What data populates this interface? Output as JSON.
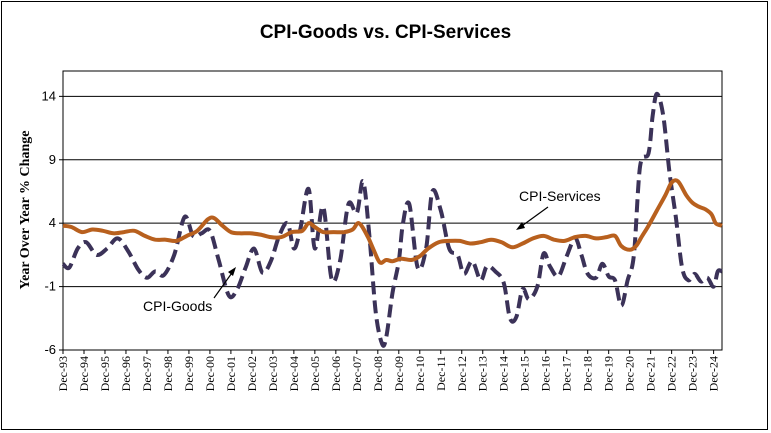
{
  "chart_data": {
    "type": "line",
    "title": "CPI-Goods vs. CPI-Services",
    "xlabel": "",
    "ylabel": "Year Over Year % Change",
    "ylim": [
      -6,
      16
    ],
    "yticks": [
      14,
      9,
      4,
      -1,
      -6
    ],
    "categories": [
      "Dec-93",
      "Dec-94",
      "Dec-95",
      "Dec-96",
      "Dec-97",
      "Dec-98",
      "Dec-99",
      "Dec-00",
      "Dec-01",
      "Dec-02",
      "Dec-03",
      "Dec-04",
      "Dec-05",
      "Dec-06",
      "Dec-07",
      "Dec-08",
      "Dec-09",
      "Dec-10",
      "Dec-11",
      "Dec-12",
      "Dec-13",
      "Dec-14",
      "Dec-15",
      "Dec-16",
      "Dec-17",
      "Dec-18",
      "Dec-19",
      "Dec-20",
      "Dec-21",
      "Dec-22",
      "Dec-23",
      "Dec-24"
    ],
    "x_start": 1993.9,
    "x_end": 2025.3,
    "gridlines": true,
    "series": [
      {
        "name": "CPI-Services",
        "color": "#b8601e",
        "style": "solid",
        "points": [
          [
            1993.9,
            3.8
          ],
          [
            1994.3,
            3.7
          ],
          [
            1994.8,
            3.3
          ],
          [
            1995.3,
            3.5
          ],
          [
            1995.8,
            3.4
          ],
          [
            1996.3,
            3.2
          ],
          [
            1996.8,
            3.3
          ],
          [
            1997.3,
            3.4
          ],
          [
            1997.8,
            3.0
          ],
          [
            1998.3,
            2.7
          ],
          [
            1998.8,
            2.7
          ],
          [
            1999.3,
            2.6
          ],
          [
            1999.8,
            3.0
          ],
          [
            2000.3,
            3.4
          ],
          [
            2000.8,
            4.3
          ],
          [
            2001.1,
            4.4
          ],
          [
            2001.5,
            3.8
          ],
          [
            2001.9,
            3.3
          ],
          [
            2002.3,
            3.2
          ],
          [
            2002.8,
            3.2
          ],
          [
            2003.3,
            3.1
          ],
          [
            2003.8,
            2.9
          ],
          [
            2004.3,
            2.9
          ],
          [
            2004.8,
            3.3
          ],
          [
            2005.3,
            3.4
          ],
          [
            2005.6,
            4.0
          ],
          [
            2005.9,
            3.7
          ],
          [
            2006.3,
            3.3
          ],
          [
            2006.8,
            3.3
          ],
          [
            2007.3,
            3.3
          ],
          [
            2007.7,
            3.5
          ],
          [
            2008.0,
            4.0
          ],
          [
            2008.4,
            3.0
          ],
          [
            2008.7,
            1.9
          ],
          [
            2009.0,
            0.9
          ],
          [
            2009.3,
            1.1
          ],
          [
            2009.6,
            1.0
          ],
          [
            2010.0,
            1.2
          ],
          [
            2010.5,
            1.1
          ],
          [
            2010.9,
            1.4
          ],
          [
            2011.3,
            2.0
          ],
          [
            2011.8,
            2.5
          ],
          [
            2012.3,
            2.6
          ],
          [
            2012.8,
            2.6
          ],
          [
            2013.3,
            2.4
          ],
          [
            2013.8,
            2.5
          ],
          [
            2014.3,
            2.7
          ],
          [
            2014.8,
            2.5
          ],
          [
            2015.3,
            2.1
          ],
          [
            2015.8,
            2.4
          ],
          [
            2016.3,
            2.8
          ],
          [
            2016.8,
            3.0
          ],
          [
            2017.3,
            2.7
          ],
          [
            2017.8,
            2.6
          ],
          [
            2018.3,
            2.9
          ],
          [
            2018.8,
            3.0
          ],
          [
            2019.3,
            2.8
          ],
          [
            2019.8,
            2.9
          ],
          [
            2020.2,
            3.0
          ],
          [
            2020.5,
            2.2
          ],
          [
            2020.9,
            1.9
          ],
          [
            2021.2,
            2.2
          ],
          [
            2021.5,
            3.0
          ],
          [
            2021.8,
            3.8
          ],
          [
            2022.2,
            5.0
          ],
          [
            2022.6,
            6.2
          ],
          [
            2022.9,
            7.2
          ],
          [
            2023.2,
            7.3
          ],
          [
            2023.6,
            6.2
          ],
          [
            2023.9,
            5.6
          ],
          [
            2024.2,
            5.3
          ],
          [
            2024.5,
            5.1
          ],
          [
            2024.8,
            4.7
          ],
          [
            2025.0,
            4.0
          ],
          [
            2025.3,
            3.8
          ]
        ]
      },
      {
        "name": "CPI-Goods",
        "color": "#3b3258",
        "style": "dashed",
        "points": [
          [
            1993.9,
            0.8
          ],
          [
            1994.2,
            0.5
          ],
          [
            1994.6,
            2.0
          ],
          [
            1995.0,
            2.5
          ],
          [
            1995.5,
            1.5
          ],
          [
            1996.0,
            2.0
          ],
          [
            1996.5,
            2.8
          ],
          [
            1997.0,
            1.8
          ],
          [
            1997.5,
            0.3
          ],
          [
            1997.9,
            -0.3
          ],
          [
            1998.3,
            0.2
          ],
          [
            1998.7,
            -0.1
          ],
          [
            1999.2,
            1.5
          ],
          [
            1999.7,
            4.5
          ],
          [
            2000.1,
            3.0
          ],
          [
            2000.5,
            3.2
          ],
          [
            2000.9,
            3.4
          ],
          [
            2001.3,
            1.2
          ],
          [
            2001.8,
            -1.7
          ],
          [
            2002.2,
            -1.2
          ],
          [
            2002.6,
            0.5
          ],
          [
            2003.0,
            2.0
          ],
          [
            2003.4,
            0.1
          ],
          [
            2003.8,
            1.0
          ],
          [
            2004.2,
            3.0
          ],
          [
            2004.6,
            4.0
          ],
          [
            2004.9,
            2.0
          ],
          [
            2005.2,
            3.5
          ],
          [
            2005.6,
            6.7
          ],
          [
            2005.9,
            2.0
          ],
          [
            2006.3,
            5.3
          ],
          [
            2006.7,
            -0.4
          ],
          [
            2007.1,
            1.0
          ],
          [
            2007.5,
            5.5
          ],
          [
            2007.9,
            4.8
          ],
          [
            2008.2,
            7.3
          ],
          [
            2008.5,
            3.0
          ],
          [
            2008.8,
            -3.0
          ],
          [
            2009.1,
            -5.5
          ],
          [
            2009.3,
            -5.0
          ],
          [
            2009.6,
            -1.5
          ],
          [
            2009.9,
            1.0
          ],
          [
            2010.1,
            4.0
          ],
          [
            2010.4,
            5.5
          ],
          [
            2010.8,
            0.5
          ],
          [
            2011.2,
            2.0
          ],
          [
            2011.5,
            6.5
          ],
          [
            2011.9,
            5.0
          ],
          [
            2012.3,
            2.0
          ],
          [
            2012.7,
            1.5
          ],
          [
            2013.0,
            0.0
          ],
          [
            2013.4,
            1.0
          ],
          [
            2013.8,
            -0.5
          ],
          [
            2014.1,
            0.6
          ],
          [
            2014.5,
            0.2
          ],
          [
            2014.9,
            -0.7
          ],
          [
            2015.2,
            -3.5
          ],
          [
            2015.5,
            -3.4
          ],
          [
            2015.8,
            -1.2
          ],
          [
            2016.1,
            -2.0
          ],
          [
            2016.5,
            -1.0
          ],
          [
            2016.8,
            1.6
          ],
          [
            2017.1,
            0.6
          ],
          [
            2017.5,
            -0.2
          ],
          [
            2017.9,
            1.4
          ],
          [
            2018.3,
            2.8
          ],
          [
            2018.6,
            1.5
          ],
          [
            2018.9,
            0.0
          ],
          [
            2019.3,
            -0.3
          ],
          [
            2019.6,
            0.8
          ],
          [
            2019.9,
            -0.2
          ],
          [
            2020.2,
            -0.5
          ],
          [
            2020.5,
            -2.5
          ],
          [
            2020.8,
            -0.5
          ],
          [
            2021.1,
            1.5
          ],
          [
            2021.4,
            8.5
          ],
          [
            2021.8,
            9.5
          ],
          [
            2022.0,
            12.5
          ],
          [
            2022.2,
            14.2
          ],
          [
            2022.5,
            12.5
          ],
          [
            2022.8,
            8.0
          ],
          [
            2023.1,
            4.5
          ],
          [
            2023.4,
            0.5
          ],
          [
            2023.7,
            -0.5
          ],
          [
            2024.0,
            0.0
          ],
          [
            2024.3,
            -0.6
          ],
          [
            2024.6,
            -0.3
          ],
          [
            2024.9,
            -1.0
          ],
          [
            2025.1,
            0.2
          ],
          [
            2025.3,
            0.2
          ]
        ]
      }
    ],
    "annotations": [
      {
        "label": "CPI-Services",
        "points_to": "CPI-Services"
      },
      {
        "label": "CPI-Goods",
        "points_to": "CPI-Goods"
      }
    ]
  }
}
